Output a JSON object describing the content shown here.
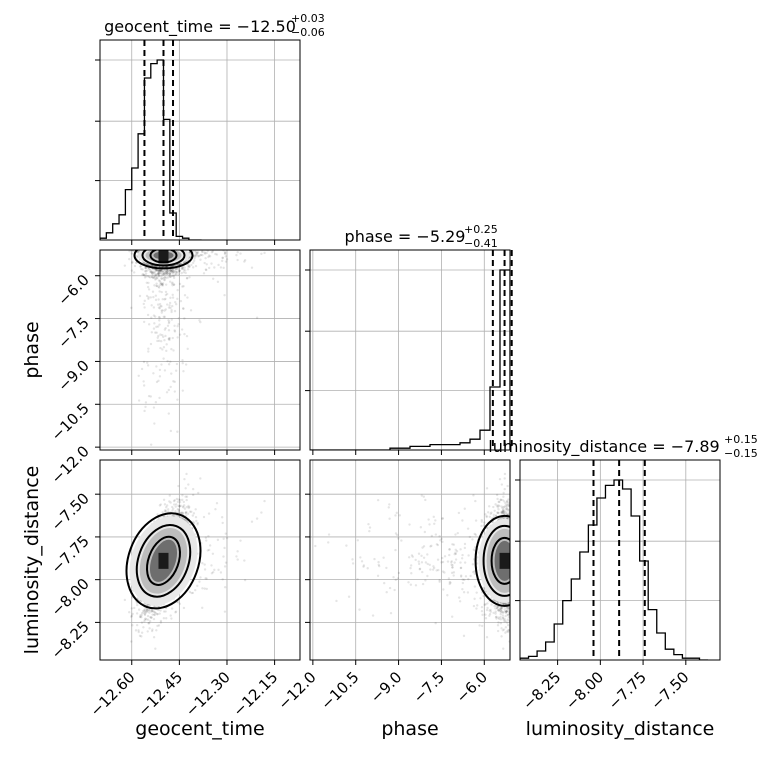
{
  "chart_data": {
    "type": "corner",
    "parameters": [
      "geocent_time",
      "phase",
      "luminosity_distance"
    ],
    "axis_labels": {
      "geocent_time": "geocent_time",
      "phase": "phase",
      "luminosity_distance": "luminosity_distance"
    },
    "ranges": {
      "geocent_time": [
        -12.7,
        -12.07
      ],
      "phase": [
        -12.1,
        -5.1
      ],
      "luminosity_distance": [
        -8.47,
        -7.3
      ]
    },
    "ticks": {
      "geocent_time": [
        -12.6,
        -12.45,
        -12.3,
        -12.15
      ],
      "phase": [
        -12.0,
        -10.5,
        -9.0,
        -7.5,
        -6.0
      ],
      "luminosity_distance": [
        -8.25,
        -8.0,
        -7.75,
        -7.5
      ]
    },
    "tick_labels": {
      "geocent_time": [
        "−12.60",
        "−12.45",
        "−12.30",
        "−12.15"
      ],
      "phase": [
        "−12.0",
        "−10.5",
        "−9.0",
        "−7.5",
        "−6.0"
      ],
      "luminosity_distance": [
        "−8.25",
        "−8.00",
        "−7.75",
        "−7.50"
      ]
    },
    "titles": {
      "geocent_time": {
        "text": "geocent_time = −12.50",
        "plus": "+0.03",
        "minus": "−0.06"
      },
      "phase": {
        "text": "phase = −5.29",
        "plus": "+0.25",
        "minus": "−0.41"
      },
      "luminosity_distance": {
        "text": "luminosity_distance = −7.89",
        "plus": "+0.15",
        "minus": "−0.15"
      }
    },
    "quantiles": {
      "geocent_time": [
        -12.56,
        -12.5,
        -12.47
      ],
      "phase": [
        -5.7,
        -5.29,
        -5.04
      ],
      "luminosity_distance": [
        -8.04,
        -7.89,
        -7.74
      ]
    },
    "histograms": {
      "geocent_time": {
        "edges": [
          -12.7,
          -12.68,
          -12.66,
          -12.64,
          -12.62,
          -12.6,
          -12.58,
          -12.56,
          -12.54,
          -12.52,
          -12.5,
          -12.48,
          -12.46,
          -12.44,
          -12.42,
          -12.4,
          -12.38
        ],
        "counts": [
          1,
          4,
          9,
          14,
          28,
          40,
          59,
          90,
          98,
          100,
          67,
          15,
          2,
          1,
          0,
          0
        ]
      },
      "phase": {
        "edges": [
          -12.1,
          -11.75,
          -11.4,
          -11.05,
          -10.7,
          -10.35,
          -10.0,
          -9.65,
          -9.3,
          -8.95,
          -8.6,
          -8.25,
          -7.9,
          -7.55,
          -7.2,
          -6.85,
          -6.5,
          -6.15,
          -5.8,
          -5.45,
          -5.1
        ],
        "counts": [
          0,
          0,
          0,
          0,
          0,
          0,
          0,
          0,
          1,
          1,
          2,
          2,
          3,
          3,
          3,
          4,
          6,
          11,
          35,
          100
        ]
      },
      "luminosity_distance": {
        "edges": [
          -8.47,
          -8.42,
          -8.37,
          -8.32,
          -8.27,
          -8.22,
          -8.17,
          -8.12,
          -8.07,
          -8.02,
          -7.97,
          -7.92,
          -7.87,
          -7.82,
          -7.77,
          -7.72,
          -7.67,
          -7.62,
          -7.57,
          -7.52,
          -7.47,
          -7.42,
          -7.37
        ],
        "counts": [
          1,
          2,
          5,
          10,
          20,
          33,
          45,
          60,
          75,
          90,
          97,
          100,
          95,
          80,
          55,
          28,
          15,
          6,
          3,
          1,
          1,
          0
        ]
      }
    },
    "posterior": {
      "geocent_time": -12.5,
      "phase": -5.29,
      "luminosity_distance": -7.89
    },
    "grid": true
  }
}
